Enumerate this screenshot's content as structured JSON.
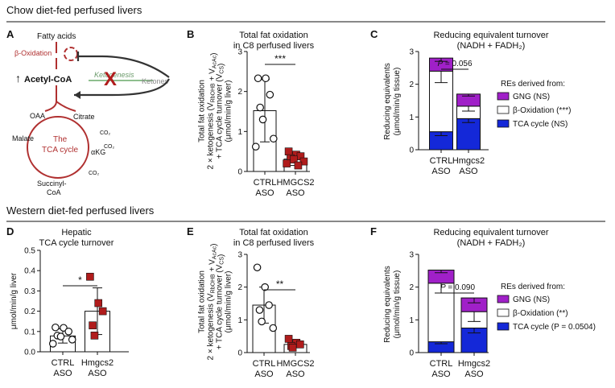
{
  "sections": {
    "chow": "Chow diet-fed perfused livers",
    "western": "Western diet-fed perfused livers"
  },
  "colors": {
    "ctrl": "#ffffff",
    "hmgcs2": "#b01c1c",
    "gng": "#a020c8",
    "beta": "#ffffff",
    "tca": "#1428d8",
    "schematic": "#b03030"
  },
  "schematic": {
    "panel": "A",
    "fatty_acids": "Fatty acids",
    "beta_ox": "β-Oxidation",
    "acetyl_coa": "Acetyl-CoA",
    "ketogenesis": "Ketogenesis",
    "ketones": "Ketones",
    "oaa": "OAA",
    "citrate": "Citrate",
    "malate": "Malate",
    "akg": "αKG",
    "succinyl": "Succinyl-",
    "coa": "CoA",
    "co2a": "CO₂",
    "co2b": "CO₂",
    "co2c": "CO₂",
    "tca_line1": "The",
    "tca_line2": "TCA cycle",
    "blocked_mark": "X"
  },
  "chart_data": [
    {
      "id": "B",
      "type": "bar",
      "title": "Total fat oxidation",
      "subtitle": "in C8 perfused livers",
      "ylabel_lines": [
        "Total fat oxidation",
        "2 × ketogenesis (V_RbOHB + V_AcAc)",
        "+ TCA cycle turnover (V_CS)",
        "(μmol/min/g liver)"
      ],
      "ylim": [
        0,
        3
      ],
      "yticks": [
        "0",
        "1",
        "2",
        "3"
      ],
      "categories": [
        [
          "CTRL",
          "ASO"
        ],
        [
          "HMGCS2",
          "ASO"
        ]
      ],
      "means": [
        1.52,
        0.31
      ],
      "sd": [
        0.78,
        0.16
      ],
      "points": [
        [
          2.33,
          2.33,
          1.92,
          1.6,
          1.3,
          0.82,
          0.62
        ],
        [
          0.5,
          0.42,
          0.38,
          0.33,
          0.3,
          0.25,
          0.2,
          0.15
        ]
      ],
      "significance": "***"
    },
    {
      "id": "C",
      "type": "stacked-bar",
      "title": "Reducing equivalent turnover",
      "subtitle": "(NADH + FADH₂)",
      "ylabel_lines": [
        "Reducing equivalents",
        "(μmol/min/g tissue)"
      ],
      "ylim": [
        0,
        3
      ],
      "yticks": [
        "0",
        "1",
        "2",
        "3"
      ],
      "categories": [
        [
          "CTRL",
          "ASO"
        ],
        [
          "Hmgcs2",
          "ASO"
        ]
      ],
      "series": [
        {
          "name": "TCA cycle",
          "values": [
            0.55,
            0.95
          ],
          "err": [
            0.12,
            0.12
          ]
        },
        {
          "name": "β-Oxidation",
          "values": [
            1.85,
            0.38
          ],
          "err": [
            0.35,
            0.15
          ]
        },
        {
          "name": "GNG",
          "values": [
            0.4,
            0.37
          ],
          "err": [
            0.1,
            0.06
          ]
        }
      ],
      "pvalue": "P = 0.056",
      "legend_title": "REs derived from:",
      "legend": [
        "GNG (NS)",
        "β-Oxidation (***)",
        "TCA cycle (NS)"
      ]
    },
    {
      "id": "D",
      "type": "bar",
      "title": "Hepatic",
      "subtitle": "TCA cycle turnover",
      "ylabel_lines": [
        "μmol/min/g liver"
      ],
      "ylim": [
        0,
        0.5
      ],
      "yticks": [
        "0.0",
        "0.1",
        "0.2",
        "0.3",
        "0.4",
        "0.5"
      ],
      "categories": [
        [
          "CTRL",
          "ASO"
        ],
        [
          "Hmgcs2",
          "ASO"
        ]
      ],
      "means": [
        0.078,
        0.2
      ],
      "sd": [
        0.035,
        0.115
      ],
      "points": [
        [
          0.12,
          0.118,
          0.1,
          0.08,
          0.075,
          0.06,
          0.04
        ],
        [
          0.37,
          0.24,
          0.2,
          0.13,
          0.08
        ]
      ],
      "significance": "*"
    },
    {
      "id": "E",
      "type": "bar",
      "title": "Total fat oxidation",
      "subtitle": "in C8 perfused livers",
      "ylabel_lines": [
        "Total fat oxidation",
        "2 × ketogenesis (V_RbOHB + V_AcAc)",
        "+ TCA cycle turnover (V_CS)",
        "(μmol/min/g liver)"
      ],
      "ylim": [
        0,
        3
      ],
      "yticks": [
        "0",
        "1",
        "2",
        "3"
      ],
      "categories": [
        [
          "CTRL",
          "ASO"
        ],
        [
          "HMGCS2",
          "ASO"
        ]
      ],
      "means": [
        1.45,
        0.25
      ],
      "sd": [
        0.55,
        0.1
      ],
      "points": [
        [
          2.6,
          2.0,
          1.45,
          1.3,
          0.95,
          0.75
        ],
        [
          0.42,
          0.3,
          0.25,
          0.2,
          0.15
        ]
      ],
      "significance": "**"
    },
    {
      "id": "F",
      "type": "stacked-bar",
      "title": "Reducing equivalent turnover",
      "subtitle": "(NADH + FADH₂)",
      "ylabel_lines": [
        "Reducing equivalents",
        "(μmol/min/g tissue)"
      ],
      "ylim": [
        0,
        3
      ],
      "yticks": [
        "0",
        "1",
        "2",
        "3"
      ],
      "categories": [
        [
          "CTRL",
          "ASO"
        ],
        [
          "Hmgcs2",
          "ASO"
        ]
      ],
      "series": [
        {
          "name": "TCA cycle",
          "values": [
            0.33,
            0.75
          ],
          "err": [
            0.06,
            0.15
          ]
        },
        {
          "name": "β-Oxidation",
          "values": [
            1.79,
            0.5
          ],
          "err": [
            0.3,
            0.3
          ]
        },
        {
          "name": "GNG",
          "values": [
            0.4,
            0.42
          ],
          "err": [
            0.08,
            0.15
          ]
        }
      ],
      "pvalue": "P = 0.090",
      "legend_title": "REs derived from:",
      "legend": [
        "GNG (NS)",
        "β-Oxidation (**)",
        "TCA cycle (P = 0.0504)"
      ]
    }
  ]
}
